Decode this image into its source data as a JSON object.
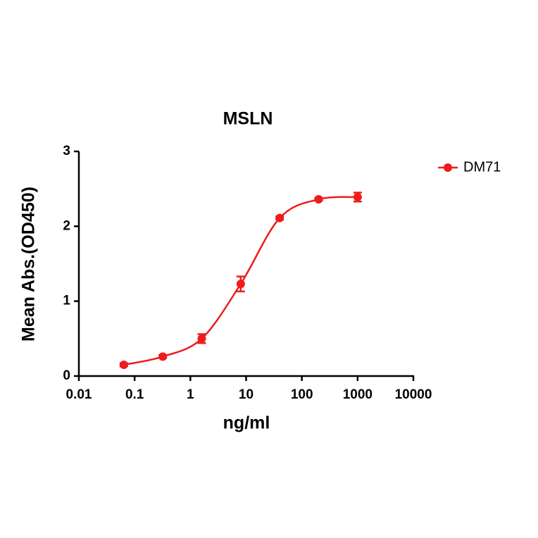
{
  "chart_data": {
    "type": "line",
    "title": "MSLN",
    "x_label": "ng/ml",
    "y_label": "Mean Abs.(OD450)",
    "xscale": "log",
    "xlim": [
      0.01,
      10000
    ],
    "xticks": [
      0.01,
      0.1,
      1,
      10,
      100,
      1000,
      10000
    ],
    "ylim": [
      0,
      3
    ],
    "yticks": [
      0,
      1,
      2,
      3
    ],
    "legend": "top-right",
    "grid": false,
    "x": [
      0.064,
      0.32,
      1.6,
      8,
      40,
      200,
      1000
    ],
    "series": [
      {
        "name": "DM71",
        "color": "#ee1c1c",
        "values": [
          0.15,
          0.26,
          0.5,
          1.23,
          2.11,
          2.36,
          2.39
        ],
        "errors": [
          0.02,
          0.02,
          0.06,
          0.1,
          0.02,
          0.02,
          0.06
        ]
      }
    ]
  }
}
